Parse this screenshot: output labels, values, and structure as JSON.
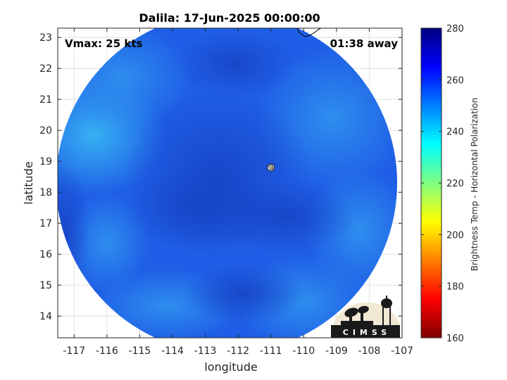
{
  "chart_data": {
    "type": "heatmap",
    "title": "Dalila: 17-Jun-2025 00:00:00",
    "xlabel": "longitude",
    "ylabel": "latitude",
    "xlim": [
      -117.5,
      -107
    ],
    "ylim": [
      13.3,
      23.3
    ],
    "x_ticks": [
      -117,
      -116,
      -115,
      -114,
      -113,
      -112,
      -111,
      -110,
      -109,
      -108,
      -107
    ],
    "y_ticks": [
      14,
      15,
      16,
      17,
      18,
      19,
      20,
      21,
      22,
      23
    ],
    "x_tick_labels": [
      "-117",
      "-116",
      "-115",
      "-114",
      "-113",
      "-112",
      "-111",
      "-110",
      "-109",
      "-108",
      "-107"
    ],
    "y_tick_labels": [
      "14",
      "15",
      "16",
      "17",
      "18",
      "19",
      "20",
      "21",
      "22",
      "23"
    ],
    "annotations": {
      "vmax": "Vmax: 25 kts",
      "time_away": "01:38 away"
    },
    "storm_center": {
      "lon": -111,
      "lat": 18.8
    },
    "swath_center": {
      "lon": -112.35,
      "lat": 18.3
    },
    "swath_radius_deg": 5.2,
    "field_description_colors": {
      "base": "#1f5ee6",
      "deep": "#1846cc",
      "light": "#2d86ee",
      "coldest_edge": "#34b8f2"
    },
    "colorbar": {
      "label": "Brightness Temp - Horizontal Polarization",
      "min": 160,
      "max": 280,
      "ticks": [
        160,
        180,
        200,
        220,
        240,
        260,
        280
      ],
      "tick_labels": [
        "160",
        "180",
        "200",
        "220",
        "240",
        "260",
        "280"
      ],
      "colormap": "jet",
      "stops": [
        "#7f0000",
        "#ff0000",
        "#ff7f00",
        "#ffff00",
        "#7fff7f",
        "#00ffff",
        "#007fff",
        "#0000ff",
        "#00007f"
      ]
    },
    "logo_text": "CIMSS",
    "grid": true
  }
}
